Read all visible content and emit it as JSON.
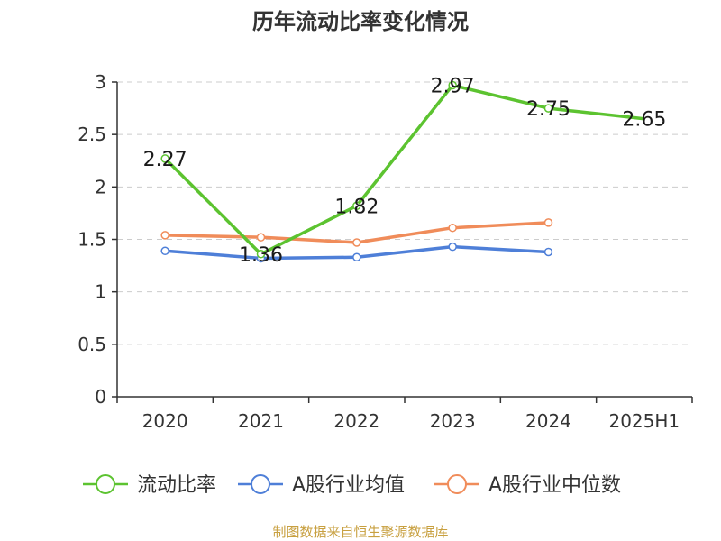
{
  "chart_data": {
    "type": "line",
    "title": "历年流动比率变化情况",
    "categories": [
      "2020",
      "2021",
      "2022",
      "2023",
      "2024",
      "2025H1"
    ],
    "ylim": [
      0,
      3
    ],
    "yticks": [
      "0",
      "0.5",
      "1",
      "1.5",
      "2",
      "2.5",
      "3"
    ],
    "grid": true,
    "legend_position": "bottom",
    "series": [
      {
        "name": "流动比率",
        "color": "#5cc330",
        "values": [
          2.27,
          1.36,
          1.82,
          2.97,
          2.75,
          2.65
        ],
        "labels": [
          "2.27",
          "1.36",
          "1.82",
          "2.97",
          "2.75",
          "2.65"
        ]
      },
      {
        "name": "A股行业均值",
        "color": "#4e7fd8",
        "values": [
          1.39,
          1.32,
          1.33,
          1.43,
          1.38,
          null
        ]
      },
      {
        "name": "A股行业中位数",
        "color": "#f08c5a",
        "values": [
          1.54,
          1.52,
          1.47,
          1.61,
          1.66,
          null
        ]
      }
    ]
  },
  "source": "制图数据来自恒生聚源数据库"
}
